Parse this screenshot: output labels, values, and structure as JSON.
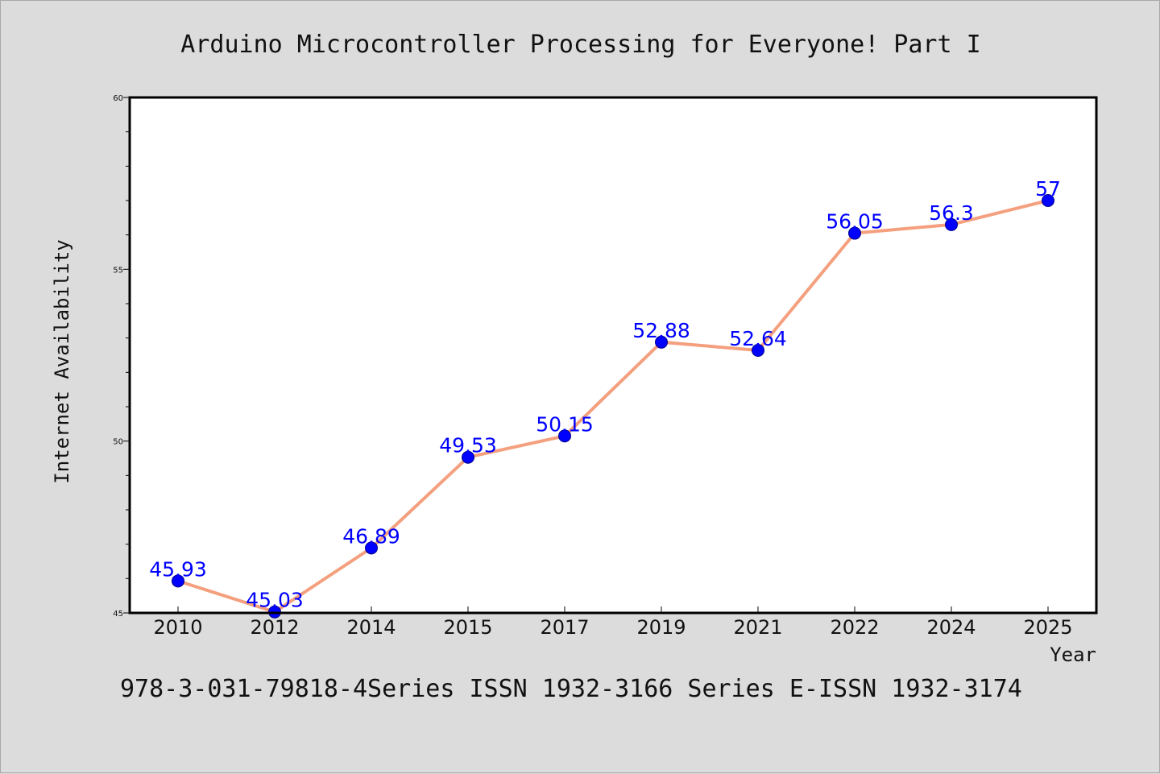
{
  "colors": {
    "background": "#dcdcdc",
    "plot_background": "#ffffff",
    "line": "#f4a07f",
    "marker": "#0000ff",
    "data_label": "#0000ff",
    "frame": "#000000"
  },
  "footer": "978-3-031-79818-4Series ISSN 1932-3166 Series E-ISSN 1932-3174",
  "chart_data": {
    "type": "line",
    "title": "Arduino Microcontroller Processing for Everyone! Part I",
    "xlabel": "Year",
    "ylabel": "Internet Availability",
    "categories": [
      "2010",
      "2012",
      "2014",
      "2015",
      "2017",
      "2019",
      "2021",
      "2022",
      "2024",
      "2025"
    ],
    "series": [
      {
        "values": [
          45.93,
          45.03,
          46.89,
          49.53,
          50.15,
          52.88,
          52.64,
          56.05,
          56.3,
          57
        ]
      }
    ],
    "data_labels": [
      "45.93",
      "45.03",
      "46.89",
      "49.53",
      "50.15",
      "52.88",
      "52.64",
      "56.05",
      "56.3",
      "57"
    ],
    "ylim": [
      45,
      60
    ],
    "yticks": [
      45,
      50,
      55,
      60
    ],
    "ytick_labels": [
      "45",
      "50",
      "55",
      "60"
    ],
    "grid": false,
    "legend": "none"
  }
}
